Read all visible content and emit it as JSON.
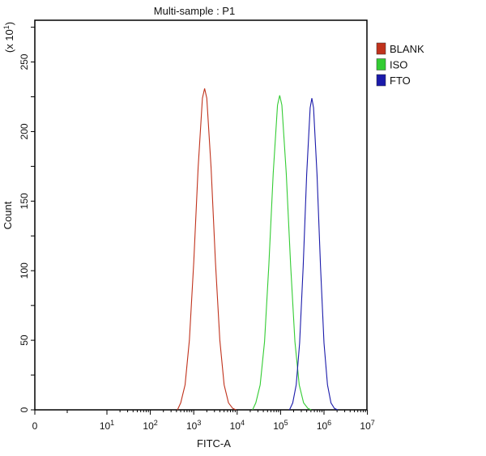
{
  "chart_data": {
    "type": "line",
    "title": "Multi-sample : P1",
    "xlabel": "FITC-A",
    "ylabel": "Count",
    "y_multiplier_label": "(x 10^1)",
    "x_scale": "log (biexponential, with 0)",
    "xlim": [
      0,
      10000000
    ],
    "ylim": [
      0,
      280
    ],
    "x_tick_labels": [
      "0",
      "10^1",
      "10^2",
      "10^3",
      "10^4",
      "10^5",
      "10^6",
      "10^7"
    ],
    "y_ticks": [
      0,
      50,
      100,
      150,
      200,
      250
    ],
    "grid": false,
    "legend_position": "right",
    "series": [
      {
        "name": "BLANK",
        "color": "#c0321c",
        "x": [
          501,
          631,
          794,
          1000,
          1259,
          1585,
          1780,
          1995,
          2512,
          3162,
          3981,
          5012,
          6310,
          7943
        ],
        "y": [
          5,
          18,
          50,
          106,
          174,
          224,
          231,
          224,
          174,
          106,
          50,
          18,
          5,
          1
        ]
      },
      {
        "name": "ISO",
        "color": "#33cc33",
        "x": [
          26900,
          33900,
          42700,
          53700,
          67600,
          85100,
          95500,
          107000,
          135000,
          170000,
          214000,
          269000,
          339000,
          427000
        ],
        "y": [
          5,
          18,
          49,
          104,
          170,
          219,
          226,
          219,
          170,
          104,
          49,
          18,
          5,
          1
        ]
      },
      {
        "name": "FTO",
        "color": "#1a1aaa",
        "x": [
          190500,
          229000,
          275000,
          331000,
          398000,
          479000,
          525000,
          575000,
          692000,
          832000,
          1000000,
          1202000,
          1445000,
          1738000
        ],
        "y": [
          5,
          18,
          48,
          103,
          169,
          217,
          224,
          217,
          169,
          103,
          48,
          18,
          5,
          1
        ]
      }
    ]
  }
}
